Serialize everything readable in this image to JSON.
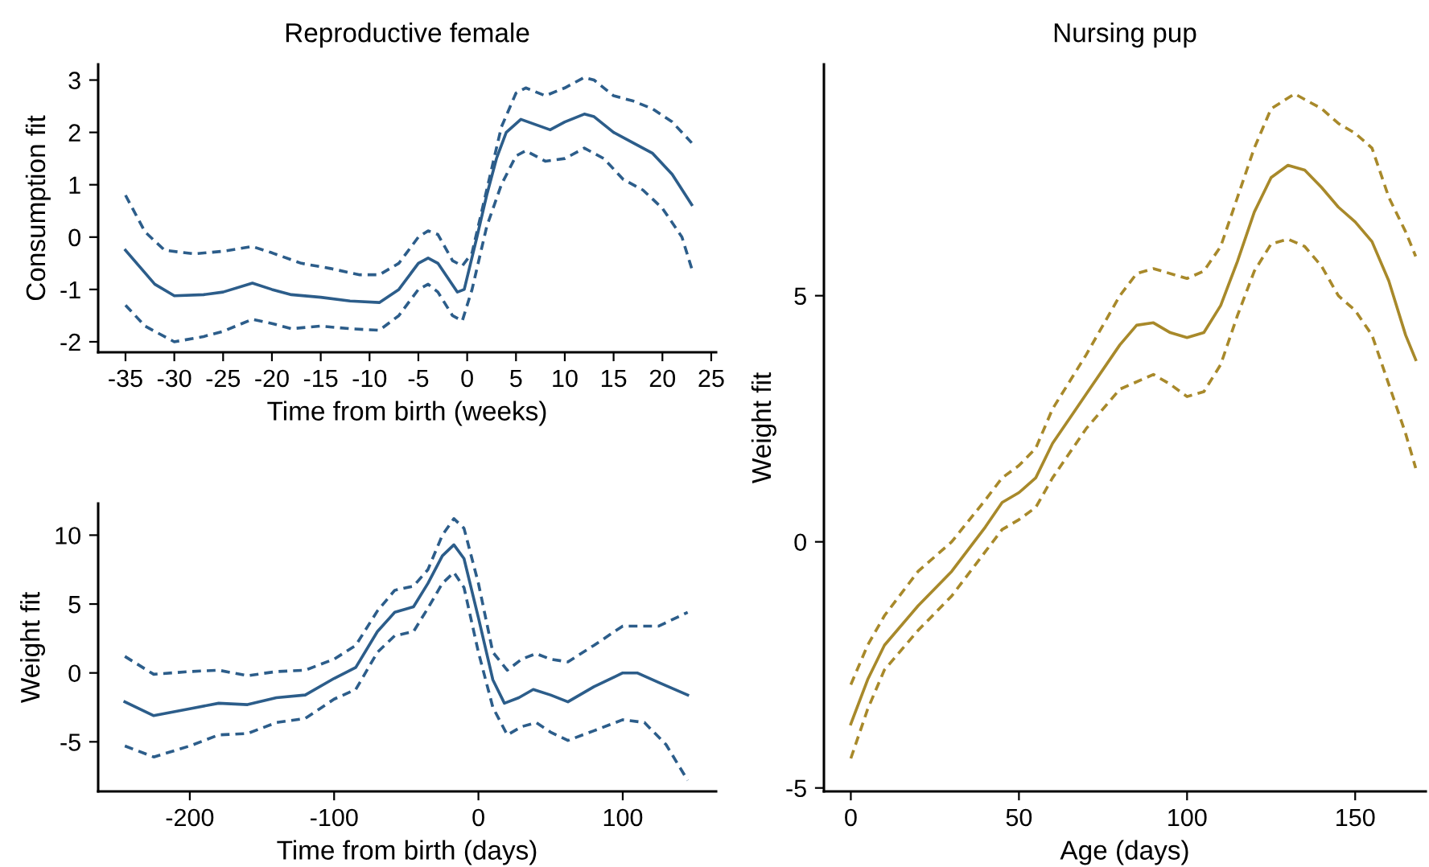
{
  "chart_data": [
    {
      "type": "line",
      "title": "Reproductive female",
      "xlabel": "Time from birth (weeks)",
      "ylabel": "Consumption fit",
      "xlim": [
        -37.8,
        25.5
      ],
      "ylim": [
        -2.2,
        3.3
      ],
      "xticks": [
        -35,
        -30,
        -25,
        -20,
        -15,
        -10,
        -5,
        0,
        5,
        10,
        15,
        20,
        25
      ],
      "yticks": [
        -2,
        -1,
        0,
        1,
        2,
        3
      ],
      "grid": false,
      "legend": false,
      "series": [
        {
          "color": "#2c5d8a",
          "line_style": "solid",
          "x": [
            -35,
            -32,
            -30,
            -27,
            -25,
            -22,
            -20,
            -18,
            -15,
            -12,
            -9,
            -7,
            -5,
            -4,
            -3,
            -1,
            -0.3,
            1,
            2,
            3,
            4,
            5.5,
            7,
            8.5,
            10,
            12,
            13,
            15,
            17,
            19,
            21,
            23
          ],
          "values": [
            -0.25,
            -0.9,
            -1.12,
            -1.1,
            -1.05,
            -0.88,
            -1.0,
            -1.1,
            -1.15,
            -1.22,
            -1.25,
            -1.0,
            -0.5,
            -0.4,
            -0.5,
            -1.05,
            -1.0,
            0.0,
            0.8,
            1.5,
            2.0,
            2.25,
            2.15,
            2.05,
            2.2,
            2.35,
            2.3,
            2.0,
            1.8,
            1.6,
            1.2,
            0.62
          ]
        },
        {
          "color": "#2c5d8a",
          "line_style": "dashed",
          "x": [
            -35,
            -33,
            -31,
            -28,
            -25,
            -22,
            -20,
            -17,
            -14,
            -11,
            -9,
            -7,
            -5,
            -4,
            -3,
            -1.5,
            -0.5,
            0.5,
            2,
            3.5,
            5,
            6,
            8,
            10,
            12,
            13,
            15,
            17,
            19,
            21,
            23
          ],
          "values": [
            0.8,
            0.1,
            -0.25,
            -0.32,
            -0.27,
            -0.18,
            -0.3,
            -0.5,
            -0.6,
            -0.72,
            -0.72,
            -0.5,
            0.0,
            0.12,
            0.05,
            -0.45,
            -0.55,
            -0.3,
            0.9,
            2.1,
            2.75,
            2.85,
            2.7,
            2.85,
            3.05,
            3.0,
            2.7,
            2.6,
            2.45,
            2.2,
            1.8
          ]
        },
        {
          "color": "#2c5d8a",
          "line_style": "dashed",
          "x": [
            -35,
            -33,
            -30,
            -27,
            -25,
            -22,
            -20,
            -18,
            -15,
            -12,
            -9,
            -7,
            -5,
            -4,
            -3,
            -1.5,
            -0.5,
            0.5,
            2,
            3.5,
            5,
            6,
            8,
            10,
            12,
            14,
            16,
            18,
            20,
            22,
            23
          ],
          "values": [
            -1.3,
            -1.7,
            -2.0,
            -1.9,
            -1.8,
            -1.57,
            -1.65,
            -1.75,
            -1.7,
            -1.75,
            -1.78,
            -1.5,
            -1.0,
            -0.9,
            -1.05,
            -1.5,
            -1.6,
            -1.0,
            0.2,
            1.0,
            1.55,
            1.65,
            1.45,
            1.5,
            1.7,
            1.5,
            1.1,
            0.9,
            0.55,
            0.0,
            -0.6
          ]
        }
      ]
    },
    {
      "type": "line",
      "xlabel": "Time from birth (days)",
      "ylabel": "Weight fit",
      "xlim": [
        -263.5,
        164.7
      ],
      "ylim": [
        -8.6,
        12.3
      ],
      "xticks": [
        -200,
        -100,
        0,
        100
      ],
      "yticks": [
        -5,
        0,
        5,
        10
      ],
      "grid": false,
      "legend": false,
      "series": [
        {
          "color": "#2c5d8a",
          "line_style": "solid",
          "x": [
            -245,
            -225,
            -200,
            -180,
            -160,
            -140,
            -120,
            -100,
            -85,
            -70,
            -58,
            -45,
            -35,
            -25,
            -17,
            -10,
            0,
            10,
            18,
            28,
            38,
            50,
            62,
            80,
            100,
            110,
            125,
            145
          ],
          "values": [
            -2.1,
            -3.1,
            -2.6,
            -2.2,
            -2.3,
            -1.8,
            -1.6,
            -0.4,
            0.4,
            3.0,
            4.4,
            4.8,
            6.5,
            8.5,
            9.3,
            8.3,
            4.0,
            -0.5,
            -2.2,
            -1.8,
            -1.2,
            -1.6,
            -2.1,
            -1.0,
            0.0,
            0.0,
            -0.7,
            -1.6
          ]
        },
        {
          "color": "#2c5d8a",
          "line_style": "dashed",
          "x": [
            -245,
            -225,
            -200,
            -180,
            -160,
            -140,
            -120,
            -100,
            -85,
            -70,
            -58,
            -45,
            -35,
            -25,
            -17,
            -10,
            0,
            10,
            20,
            30,
            40,
            50,
            62,
            80,
            100,
            125,
            145
          ],
          "values": [
            1.2,
            -0.1,
            0.1,
            0.2,
            -0.2,
            0.1,
            0.2,
            1.0,
            2.0,
            4.5,
            6.0,
            6.3,
            7.5,
            10.0,
            11.2,
            10.5,
            6.5,
            1.5,
            0.2,
            1.0,
            1.4,
            1.0,
            0.8,
            2.0,
            3.4,
            3.4,
            4.4
          ]
        },
        {
          "color": "#2c5d8a",
          "line_style": "dashed",
          "x": [
            -245,
            -225,
            -200,
            -180,
            -160,
            -140,
            -120,
            -100,
            -85,
            -70,
            -58,
            -45,
            -35,
            -25,
            -17,
            -10,
            0,
            10,
            20,
            30,
            40,
            50,
            62,
            80,
            100,
            115,
            130,
            145
          ],
          "values": [
            -5.3,
            -6.1,
            -5.3,
            -4.5,
            -4.4,
            -3.6,
            -3.3,
            -1.9,
            -1.2,
            1.5,
            2.7,
            3.0,
            4.7,
            6.5,
            7.3,
            6.2,
            1.5,
            -2.5,
            -4.5,
            -3.9,
            -3.6,
            -4.3,
            -4.9,
            -4.2,
            -3.4,
            -3.6,
            -5.2,
            -7.8
          ]
        }
      ]
    },
    {
      "type": "line",
      "title": "Nursing pup",
      "xlabel": "Age (days)",
      "ylabel": "Weight fit",
      "xlim": [
        -8,
        171
      ],
      "ylim": [
        -5.07,
        9.7
      ],
      "xticks": [
        0,
        50,
        100,
        150
      ],
      "yticks": [
        -5,
        0,
        5
      ],
      "grid": false,
      "legend": false,
      "series": [
        {
          "color": "#a8892a",
          "line_style": "solid",
          "x": [
            0,
            5,
            10,
            20,
            30,
            40,
            45,
            50,
            55,
            60,
            70,
            80,
            85,
            90,
            95,
            100,
            105,
            110,
            115,
            120,
            125,
            130,
            135,
            140,
            145,
            150,
            155,
            160,
            165,
            168
          ],
          "values": [
            -3.7,
            -2.8,
            -2.1,
            -1.3,
            -0.6,
            0.3,
            0.8,
            1.0,
            1.3,
            2.0,
            3.0,
            4.0,
            4.4,
            4.45,
            4.25,
            4.15,
            4.25,
            4.8,
            5.7,
            6.7,
            7.4,
            7.65,
            7.55,
            7.2,
            6.8,
            6.5,
            6.1,
            5.3,
            4.2,
            3.7
          ]
        },
        {
          "color": "#a8892a",
          "line_style": "dashed",
          "x": [
            0,
            5,
            10,
            20,
            30,
            40,
            45,
            50,
            55,
            60,
            70,
            80,
            85,
            90,
            100,
            105,
            110,
            115,
            120,
            125,
            132,
            140,
            145,
            150,
            155,
            160,
            165,
            168
          ],
          "values": [
            -2.9,
            -2.1,
            -1.5,
            -0.6,
            0.0,
            0.85,
            1.3,
            1.55,
            1.9,
            2.7,
            3.8,
            5.0,
            5.45,
            5.55,
            5.35,
            5.5,
            6.0,
            7.0,
            8.0,
            8.8,
            9.1,
            8.8,
            8.5,
            8.3,
            8.0,
            7.0,
            6.3,
            5.8
          ]
        },
        {
          "color": "#a8892a",
          "line_style": "dashed",
          "x": [
            0,
            5,
            10,
            20,
            30,
            40,
            45,
            50,
            55,
            60,
            70,
            80,
            90,
            95,
            100,
            105,
            110,
            115,
            120,
            125,
            130,
            135,
            140,
            145,
            150,
            155,
            160,
            165,
            168
          ],
          "values": [
            -4.4,
            -3.4,
            -2.6,
            -1.8,
            -1.1,
            -0.2,
            0.25,
            0.45,
            0.7,
            1.3,
            2.3,
            3.1,
            3.4,
            3.2,
            2.95,
            3.05,
            3.6,
            4.6,
            5.5,
            6.05,
            6.15,
            6.0,
            5.6,
            5.0,
            4.7,
            4.2,
            3.2,
            2.2,
            1.5
          ]
        }
      ]
    }
  ]
}
